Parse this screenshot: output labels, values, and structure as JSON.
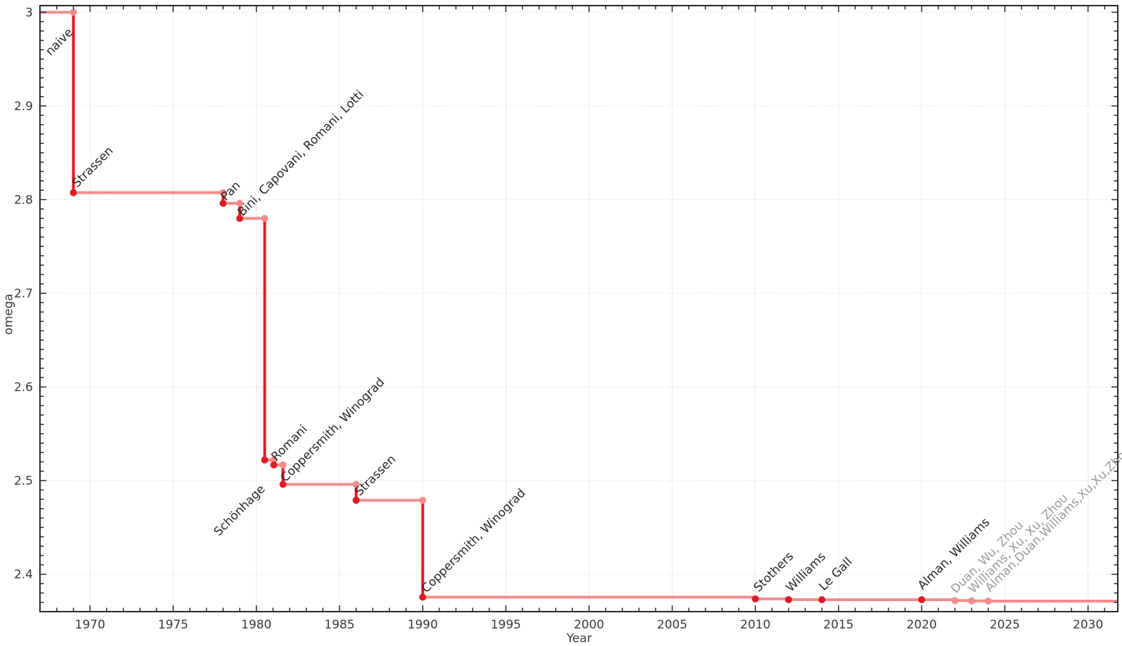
{
  "figure_name": "matrix-multiplication-exponent-history",
  "colors": {
    "record_line": "#e31b23",
    "record_dot": "#de1a22",
    "trend_line": "#f48a8c",
    "trend_dot": "#f48a8c",
    "label_dark": "#262626",
    "label_gray": "#9a9a9a",
    "tick_text": "#383838",
    "frame": "#262626",
    "grid_h": "#e0e0e0",
    "grid_v": "#ededed"
  },
  "chart_data": {
    "type": "line",
    "subtype": "step-post",
    "title": "",
    "xlabel": "Year",
    "ylabel": "omega",
    "grid": true,
    "legend": "none",
    "xlim": [
      1966.99,
      2031.79
    ],
    "ylim": [
      2.3601,
      3.0071
    ],
    "x_major_ticks": [
      {
        "v": 1970,
        "label": "1970"
      },
      {
        "v": 1975,
        "label": "1975"
      },
      {
        "v": 1980,
        "label": "1980"
      },
      {
        "v": 1985,
        "label": "1985"
      },
      {
        "v": 1990,
        "label": "1990"
      },
      {
        "v": 1995,
        "label": "1995"
      },
      {
        "v": 2000,
        "label": "2000"
      },
      {
        "v": 2005,
        "label": "2005"
      },
      {
        "v": 2010,
        "label": "2010"
      },
      {
        "v": 2015,
        "label": "2015"
      },
      {
        "v": 2020,
        "label": "2020"
      },
      {
        "v": 2025,
        "label": "2025"
      },
      {
        "v": 2030,
        "label": "2030"
      }
    ],
    "x_minor_step": 1,
    "y_major_ticks": [
      {
        "v": 3.0,
        "label": "3"
      },
      {
        "v": 2.9,
        "label": "2.9"
      },
      {
        "v": 2.8,
        "label": "2.8"
      },
      {
        "v": 2.7,
        "label": "2.7"
      },
      {
        "v": 2.6,
        "label": "2.6"
      },
      {
        "v": 2.5,
        "label": "2.5"
      },
      {
        "v": 2.4,
        "label": "2.4"
      }
    ],
    "y_minor_step": 0.01,
    "initial_omega": 3,
    "start_label": {
      "text": "naive",
      "tone": "dark",
      "label_at": [
        1967.62,
        2.9532
      ]
    },
    "records": [
      {
        "year": 1969,
        "omega": 2.8074,
        "label": "Strassen",
        "tier": "major",
        "label_at": [
          1969.22,
          2.8124
        ]
      },
      {
        "year": 1978,
        "omega": 2.796,
        "label": "Pan",
        "tier": "major",
        "label_at": [
          1978.16,
          2.7982
        ]
      },
      {
        "year": 1979,
        "omega": 2.7799,
        "label": "Bini, Capovani, Romani, Lotti",
        "tier": "major",
        "label_at": [
          1979.17,
          2.7817
        ]
      },
      {
        "year": 1980.5,
        "omega": 2.522,
        "label": "Schönhage",
        "tier": "major",
        "label_at": [
          1977.74,
          2.4403
        ]
      },
      {
        "year": 1981.05,
        "omega": 2.5167,
        "label": "Romani",
        "tier": "major",
        "label_at": [
          1981.19,
          2.5204
        ]
      },
      {
        "year": 1981.6,
        "omega": 2.496,
        "label": "Coppersmith, Winograd",
        "tier": "major",
        "label_at": [
          1981.74,
          2.498
        ]
      },
      {
        "year": 1986,
        "omega": 2.479,
        "label": "Strassen",
        "tier": "major",
        "label_at": [
          1986.21,
          2.483
        ]
      },
      {
        "year": 1990,
        "omega": 2.3755,
        "label": "Coppersmith, Winograd",
        "tier": "major",
        "label_at": [
          1990.22,
          2.3797
        ]
      },
      {
        "year": 2010,
        "omega": 2.3737,
        "label": "Stothers",
        "tier": "major",
        "label_at": [
          2010.19,
          2.3806
        ]
      },
      {
        "year": 2012,
        "omega": 2.3729,
        "label": "Williams",
        "tier": "major",
        "label_at": [
          2012.14,
          2.3806
        ]
      },
      {
        "year": 2014,
        "omega": 2.37287,
        "label": "Le Gall",
        "tier": "major",
        "label_at": [
          2014.12,
          2.3819
        ]
      },
      {
        "year": 2020,
        "omega": 2.37286,
        "label": "Alman, Williams",
        "tier": "major",
        "label_at": [
          2020.06,
          2.3829
        ]
      },
      {
        "year": 2022,
        "omega": 2.371866,
        "label": "Duan, Wu, Zhou",
        "tier": "minor",
        "label_at": [
          2022.05,
          2.3791
        ]
      },
      {
        "year": 2023,
        "omega": 2.371552,
        "label": "Williams, Xu, Xu, Zhou",
        "tier": "minor",
        "label_at": [
          2023.1,
          2.3791
        ]
      },
      {
        "year": 2024,
        "omega": 2.371339,
        "label": "Alman,Duan,Williams,Xu,Xu,Zhou",
        "tier": "minor",
        "label_at": [
          2024.11,
          2.3806
        ]
      }
    ]
  }
}
